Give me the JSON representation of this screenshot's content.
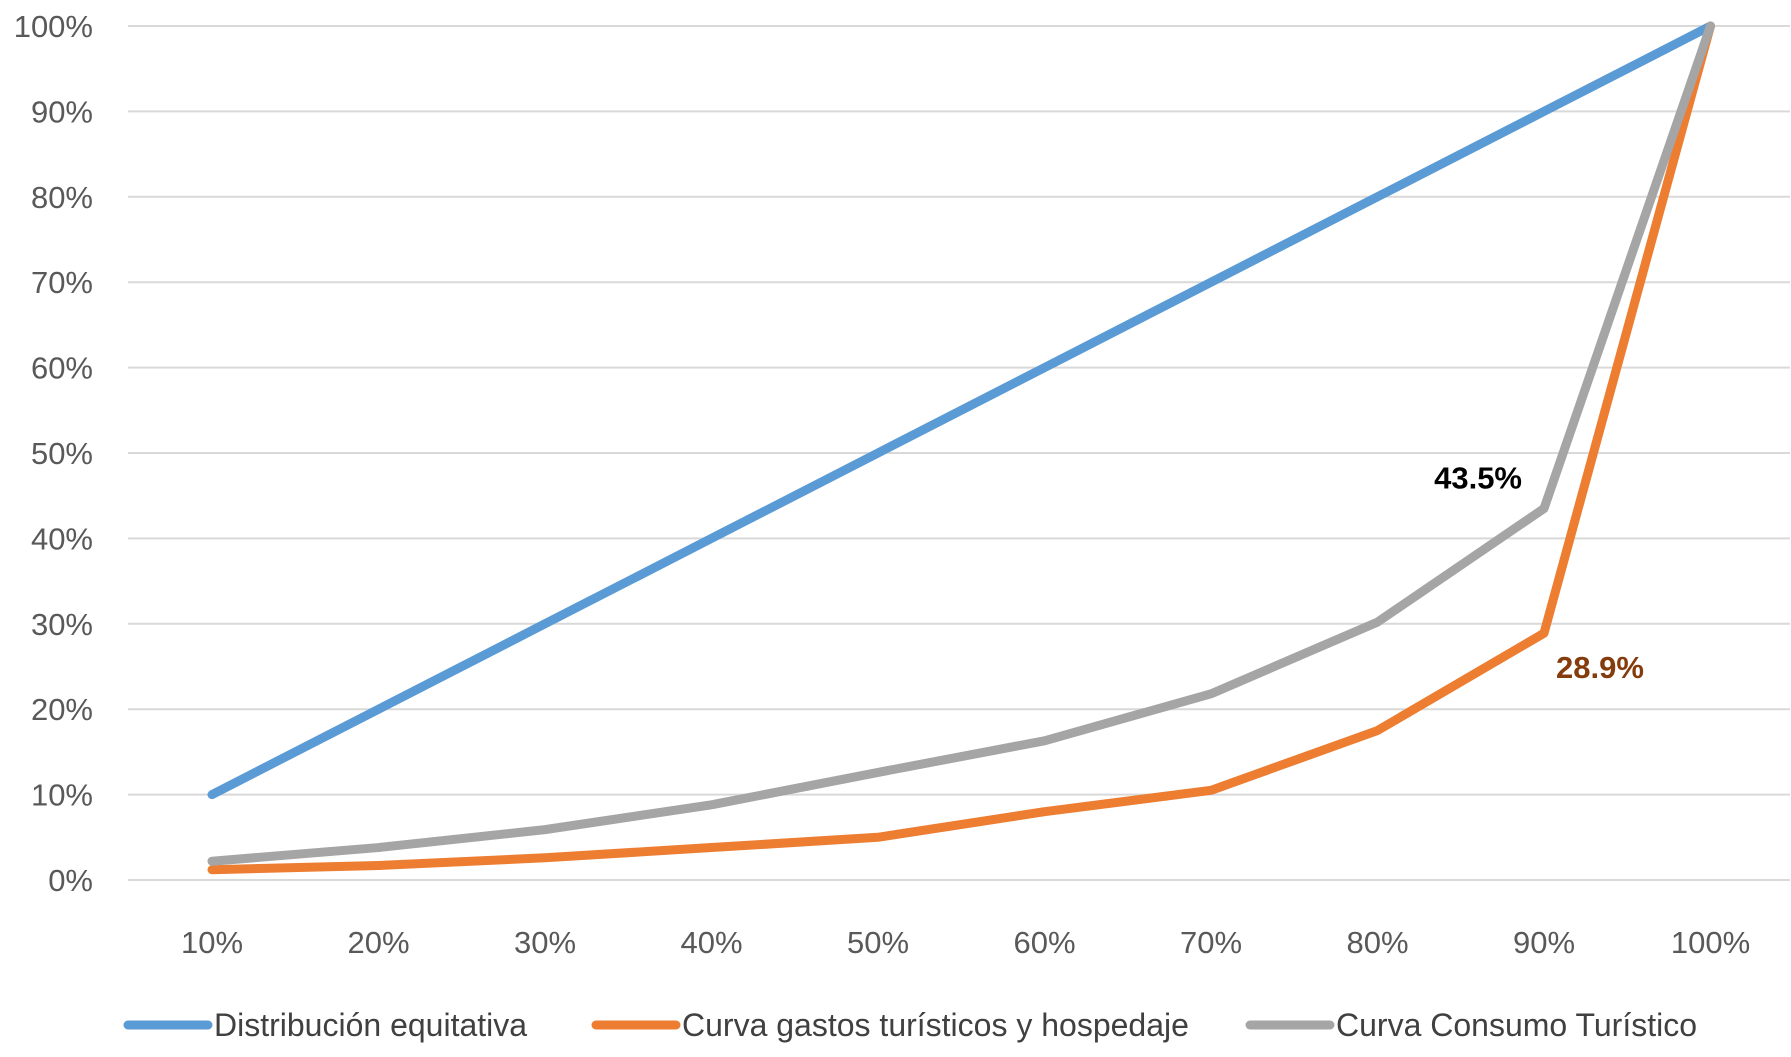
{
  "chart_data": {
    "type": "line",
    "title": "",
    "xlabel": "",
    "ylabel": "",
    "categories": [
      "10%",
      "20%",
      "30%",
      "40%",
      "50%",
      "60%",
      "70%",
      "80%",
      "90%",
      "100%"
    ],
    "y_ticks": [
      "0%",
      "10%",
      "20%",
      "30%",
      "40%",
      "50%",
      "60%",
      "70%",
      "80%",
      "90%",
      "100%"
    ],
    "ylim": [
      0,
      100
    ],
    "grid": true,
    "legend_position": "bottom",
    "series": [
      {
        "name": "Distribución equitativa",
        "color": "#5b9bd5",
        "values": [
          10,
          20,
          30,
          40,
          50,
          60,
          70,
          80,
          90,
          100
        ]
      },
      {
        "name": "Curva gastos turísticos y hospedaje",
        "color": "#ed7d31",
        "values": [
          1.2,
          1.7,
          2.6,
          3.8,
          5.0,
          8.0,
          10.5,
          17.5,
          28.9,
          100
        ]
      },
      {
        "name": "Curva Consumo Turístico",
        "color": "#a5a5a5",
        "values": [
          2.2,
          3.8,
          5.9,
          8.8,
          12.6,
          16.3,
          21.8,
          30.2,
          43.5,
          100
        ]
      }
    ],
    "annotations": [
      {
        "text": "43.5%",
        "series": 2,
        "index": 8,
        "color": "#000000"
      },
      {
        "text": "28.9%",
        "series": 1,
        "index": 8,
        "color": "#843c0c"
      }
    ]
  }
}
